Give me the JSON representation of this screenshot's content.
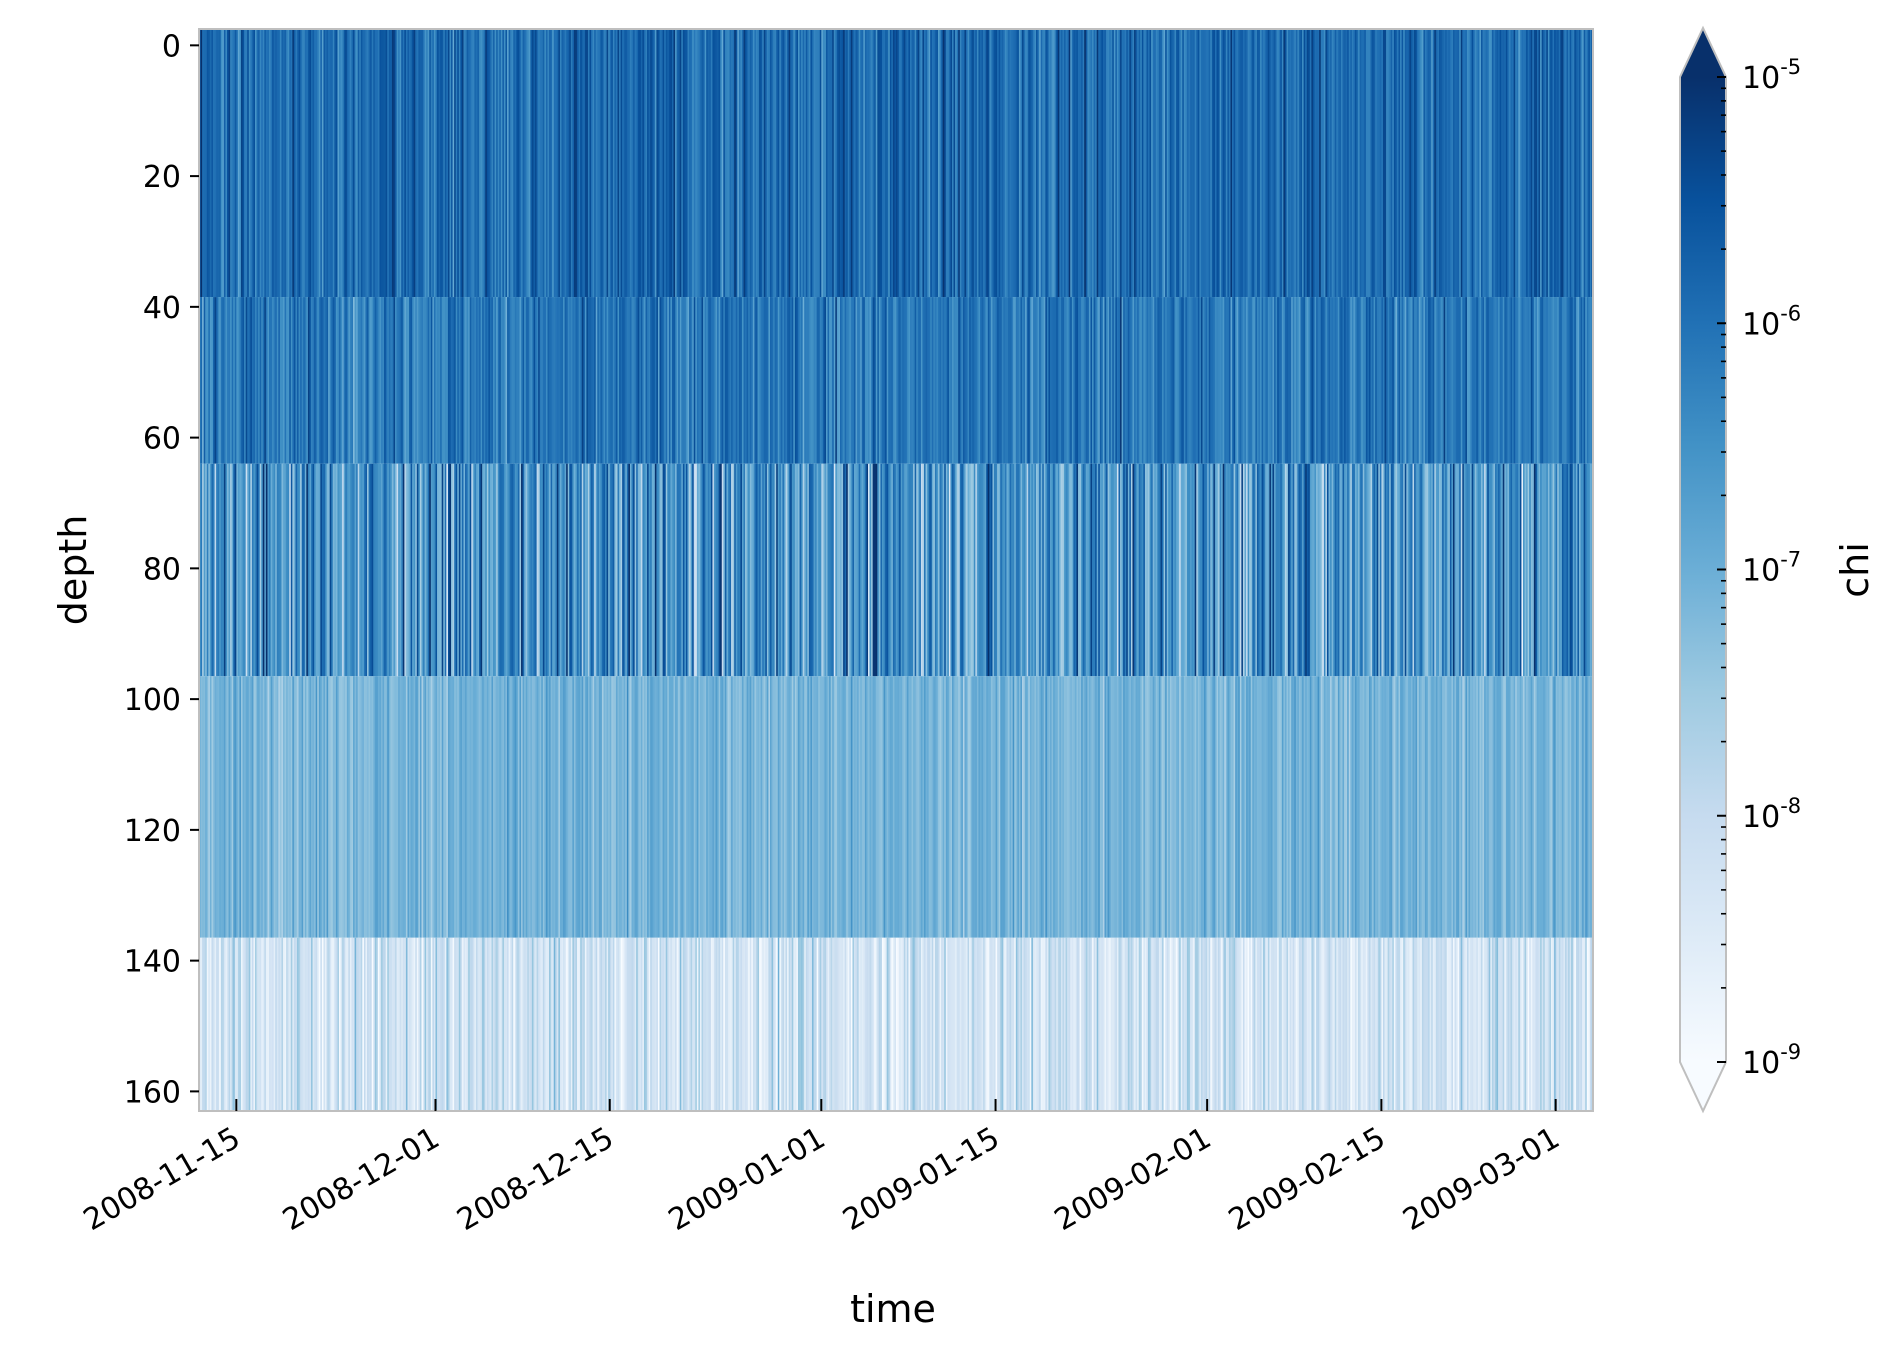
{
  "chart_data": {
    "type": "heatmap",
    "title": "",
    "xlabel": "time",
    "ylabel": "depth",
    "colorbar_label": "chi",
    "colormap": "Blues",
    "color_scale": "log",
    "color_range": [
      1e-09,
      1e-05
    ],
    "colorbar_extend": "both",
    "colorbar_ticks": [
      {
        "base": "10",
        "exp": "-5"
      },
      {
        "base": "10",
        "exp": "-6"
      },
      {
        "base": "10",
        "exp": "-7"
      },
      {
        "base": "10",
        "exp": "-8"
      },
      {
        "base": "10",
        "exp": "-9"
      }
    ],
    "x_range": [
      "2008-11-12",
      "2009-03-04"
    ],
    "x_ticks": [
      "2008-11-15",
      "2008-12-01",
      "2008-12-15",
      "2009-01-01",
      "2009-01-15",
      "2009-02-01",
      "2009-02-15",
      "2009-03-01"
    ],
    "y_range": [
      163,
      -2.5
    ],
    "y_inverted": true,
    "y_ticks": [
      "0",
      "20",
      "40",
      "60",
      "80",
      "100",
      "120",
      "140",
      "160"
    ],
    "depth_bins": [
      {
        "top": -2.5,
        "bottom": 38.5,
        "mean_log10_chi": -5.9,
        "spread": 0.6
      },
      {
        "top": 38.5,
        "bottom": 64,
        "mean_log10_chi": -6.1,
        "spread": 0.6
      },
      {
        "top": 64,
        "bottom": 96.5,
        "mean_log10_chi": -6.5,
        "spread": 1.2
      },
      {
        "top": 96.5,
        "bottom": 136.5,
        "mean_log10_chi": -7.1,
        "spread": 0.4
      },
      {
        "top": 136.5,
        "bottom": 163,
        "mean_log10_chi": -8.2,
        "spread": 0.7
      }
    ],
    "time_step_hours": 3,
    "grid": false
  }
}
